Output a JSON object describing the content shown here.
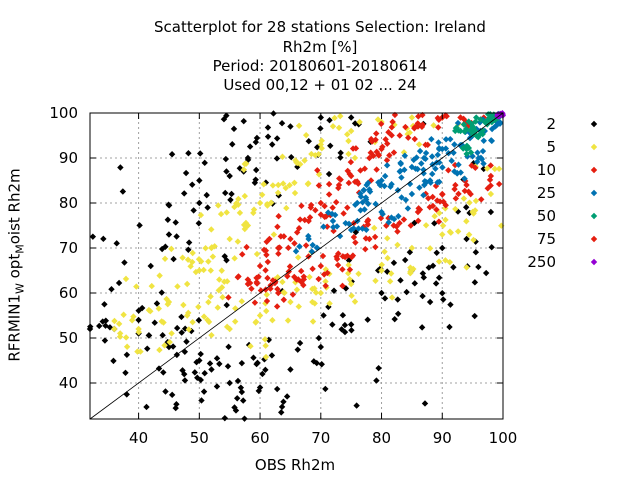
{
  "title": {
    "line1": "Scatterplot for   28 stations Selection: Ireland",
    "line2": "Rh2m [%]",
    "line3": "Period: 20180601-20180614",
    "line4": "Used  00,12  + 01 02 ... 24"
  },
  "axes": {
    "xlabel": "OBS Rh2m",
    "ylabel_parts": {
      "a": "RFRMIN1",
      "b": "W",
      "c": " opt",
      "d": "M",
      "e": "oist Rh2m"
    }
  },
  "chart_data": {
    "type": "scatter",
    "title": "Scatterplot for   28 stations Selection: Ireland Rh2m [%] Period: 20180601-20180614 Used  00,12  + 01 02 ... 24",
    "xlabel": "OBS Rh2m",
    "ylabel": "RFRMIN1W optMoist Rh2m",
    "xlim": [
      32,
      100
    ],
    "ylim": [
      32,
      100
    ],
    "xticks": [
      40,
      50,
      60,
      70,
      80,
      90,
      100
    ],
    "yticks": [
      40,
      50,
      60,
      70,
      80,
      90,
      100
    ],
    "grid": true,
    "diagonal": true,
    "legend_position": "right",
    "legend": [
      {
        "label": "2",
        "color": "#000000"
      },
      {
        "label": "5",
        "color": "#f0e442"
      },
      {
        "label": "10",
        "color": "#e51e10"
      },
      {
        "label": "25",
        "color": "#0072b2"
      },
      {
        "label": "50",
        "color": "#009e73"
      },
      {
        "label": "75",
        "color": "#e51e10"
      },
      {
        "label": "250",
        "color": "#9400d3"
      }
    ],
    "density_bands": [
      {
        "label": "2",
        "color": "#000000",
        "spread": 14,
        "points": [
          [
            32,
            52
          ],
          [
            36,
            52
          ],
          [
            40,
            54
          ],
          [
            42,
            66
          ],
          [
            45,
            73
          ],
          [
            50,
            80
          ],
          [
            50,
            85
          ],
          [
            55,
            86
          ],
          [
            58,
            90
          ],
          [
            62,
            93
          ],
          [
            65,
            97
          ],
          [
            70,
            99
          ],
          [
            75,
            99
          ],
          [
            40,
            51
          ],
          [
            45,
            48
          ],
          [
            50,
            45
          ],
          [
            52,
            43
          ],
          [
            55,
            40
          ],
          [
            57,
            38
          ],
          [
            60,
            39
          ],
          [
            65,
            43
          ],
          [
            70,
            48
          ],
          [
            75,
            53
          ],
          [
            80,
            60
          ],
          [
            85,
            65
          ],
          [
            88,
            58
          ],
          [
            90,
            70
          ],
          [
            94,
            72
          ],
          [
            98,
            78
          ]
        ]
      },
      {
        "label": "5",
        "color": "#f0e442",
        "spread": 9,
        "points": [
          [
            36,
            52
          ],
          [
            40,
            52
          ],
          [
            45,
            58
          ],
          [
            48,
            62
          ],
          [
            50,
            65
          ],
          [
            52,
            70
          ],
          [
            55,
            72
          ],
          [
            58,
            75
          ],
          [
            60,
            80
          ],
          [
            63,
            84
          ],
          [
            66,
            89
          ],
          [
            70,
            93
          ],
          [
            75,
            96
          ],
          [
            80,
            98
          ],
          [
            85,
            99
          ],
          [
            90,
            99
          ],
          [
            48,
            55
          ],
          [
            55,
            52
          ],
          [
            60,
            55
          ],
          [
            65,
            58
          ],
          [
            70,
            60
          ],
          [
            75,
            62
          ],
          [
            80,
            65
          ],
          [
            85,
            70
          ],
          [
            90,
            73
          ],
          [
            95,
            78
          ],
          [
            98,
            82
          ]
        ]
      },
      {
        "label": "10",
        "color": "#e51e10",
        "spread": 5,
        "points": [
          [
            58,
            62
          ],
          [
            60,
            66
          ],
          [
            63,
            70
          ],
          [
            65,
            72
          ],
          [
            68,
            76
          ],
          [
            70,
            80
          ],
          [
            73,
            84
          ],
          [
            75,
            86
          ],
          [
            78,
            90
          ],
          [
            80,
            92
          ],
          [
            83,
            95
          ],
          [
            86,
            97
          ],
          [
            90,
            99
          ],
          [
            93,
            99
          ],
          [
            63,
            60
          ],
          [
            66,
            63
          ],
          [
            70,
            66
          ],
          [
            74,
            68
          ],
          [
            78,
            72
          ],
          [
            82,
            75
          ],
          [
            86,
            78
          ],
          [
            90,
            82
          ],
          [
            94,
            84
          ],
          [
            98,
            86
          ]
        ]
      },
      {
        "label": "25",
        "color": "#0072b2",
        "spread": 3.2,
        "points": [
          [
            68,
            72
          ],
          [
            72,
            76
          ],
          [
            76,
            80
          ],
          [
            78,
            83
          ],
          [
            80,
            85
          ],
          [
            83,
            87
          ],
          [
            85,
            88
          ],
          [
            87,
            90
          ],
          [
            90,
            92
          ],
          [
            92,
            93
          ],
          [
            95,
            95
          ],
          [
            97,
            96
          ],
          [
            99,
            98
          ],
          [
            75,
            74
          ],
          [
            80,
            78
          ],
          [
            85,
            82
          ],
          [
            88,
            85
          ],
          [
            92,
            87
          ],
          [
            96,
            90
          ]
        ]
      },
      {
        "label": "50",
        "color": "#009e73",
        "spread": 1.5,
        "points": [
          [
            93,
            96
          ],
          [
            95,
            97
          ],
          [
            97,
            98
          ],
          [
            98,
            99
          ],
          [
            99,
            99
          ],
          [
            96,
            95
          ],
          [
            94,
            92
          ]
        ]
      },
      {
        "label": "250",
        "color": "#9400d3",
        "spread": 0.6,
        "points": [
          [
            99.3,
            99.5
          ],
          [
            99.6,
            99.8
          ]
        ]
      }
    ]
  }
}
